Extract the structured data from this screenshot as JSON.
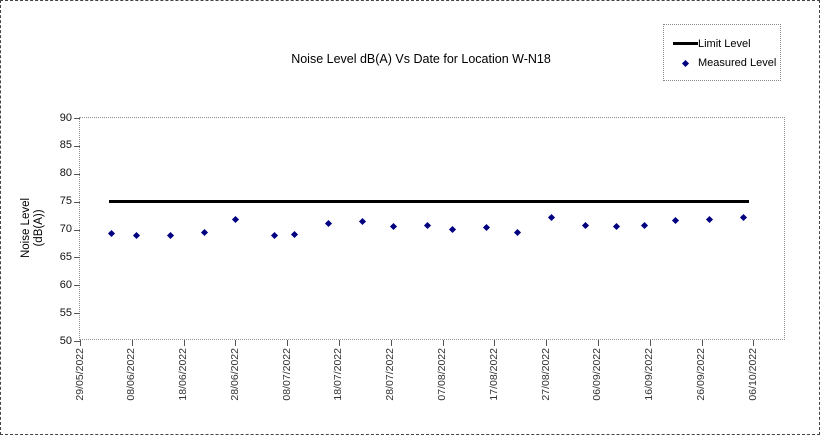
{
  "chart": {
    "title": "Noise Level dB(A) Vs Date for Location W-N18",
    "y_axis": {
      "title_line1": "Noise Level",
      "title_line2": "(dB(A))"
    },
    "legend": {
      "items": [
        {
          "label": "Limit Level",
          "marker": "line",
          "color": "#000000"
        },
        {
          "label": "Measured Level",
          "marker": "diamond",
          "color": "#000080"
        }
      ]
    }
  },
  "chart_data": {
    "type": "scatter",
    "title": "Noise Level dB(A) Vs Date for Location W-N18",
    "ylabel": "Noise Level (dB(A))",
    "xlabel": "",
    "ylim": [
      50,
      90
    ],
    "y_ticks": [
      90,
      85,
      80,
      75,
      70,
      65,
      60,
      55,
      50
    ],
    "x_tick_labels": [
      "29/05/2022",
      "08/06/2022",
      "18/06/2022",
      "28/06/2022",
      "08/07/2022",
      "18/07/2022",
      "28/07/2022",
      "07/08/2022",
      "17/08/2022",
      "27/08/2022",
      "06/09/2022",
      "16/09/2022",
      "26/09/2022",
      "06/10/2022"
    ],
    "x_tick_interval_days": 10,
    "x_axis_span_days": 136.3,
    "grid": false,
    "legend_position": "top-right",
    "series": [
      {
        "name": "Limit Level",
        "type": "line",
        "color": "#000000",
        "value": 75,
        "start_day": 5.6,
        "end_day": 129.2
      },
      {
        "name": "Measured Level",
        "type": "scatter",
        "color": "#000080",
        "points": [
          {
            "day": 6,
            "approx_date": "04/06/2022",
            "value": 69.3
          },
          {
            "day": 11,
            "approx_date": "09/06/2022",
            "value": 68.9
          },
          {
            "day": 17.5,
            "approx_date": "15/06/2022",
            "value": 69.0
          },
          {
            "day": 24,
            "approx_date": "22/06/2022",
            "value": 69.4
          },
          {
            "day": 30,
            "approx_date": "28/06/2022",
            "value": 71.8
          },
          {
            "day": 37.5,
            "approx_date": "05/07/2022",
            "value": 68.9
          },
          {
            "day": 41.5,
            "approx_date": "09/07/2022",
            "value": 69.1
          },
          {
            "day": 48,
            "approx_date": "16/07/2022",
            "value": 71.0
          },
          {
            "day": 54.5,
            "approx_date": "22/07/2022",
            "value": 71.4
          },
          {
            "day": 60.5,
            "approx_date": "28/07/2022",
            "value": 70.5
          },
          {
            "day": 67,
            "approx_date": "04/08/2022",
            "value": 70.7
          },
          {
            "day": 72,
            "approx_date": "09/08/2022",
            "value": 70.0
          },
          {
            "day": 78.5,
            "approx_date": "15/08/2022",
            "value": 70.3
          },
          {
            "day": 84.5,
            "approx_date": "21/08/2022",
            "value": 69.5
          },
          {
            "day": 91,
            "approx_date": "28/08/2022",
            "value": 72.1
          },
          {
            "day": 97.5,
            "approx_date": "03/09/2022",
            "value": 70.8
          },
          {
            "day": 103.5,
            "approx_date": "09/09/2022",
            "value": 70.5
          },
          {
            "day": 109,
            "approx_date": "15/09/2022",
            "value": 70.7
          },
          {
            "day": 115,
            "approx_date": "21/09/2022",
            "value": 71.6
          },
          {
            "day": 121.5,
            "approx_date": "27/09/2022",
            "value": 71.8
          },
          {
            "day": 128,
            "approx_date": "04/10/2022",
            "value": 72.2
          }
        ]
      }
    ]
  }
}
